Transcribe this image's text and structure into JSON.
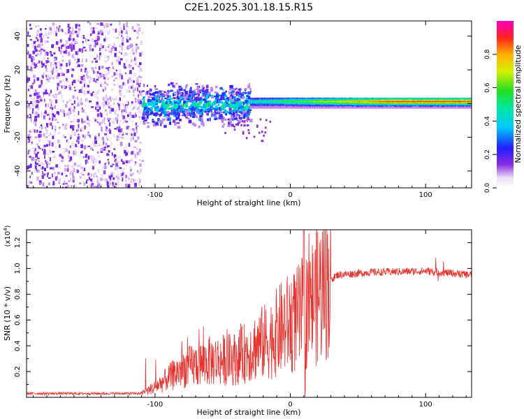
{
  "title": "C2E1.2025.301.18.15.R15",
  "chart_data": [
    {
      "type": "heatmap",
      "name": "spectrogram",
      "xlabel": "Height of straight line (km)",
      "ylabel": "Frequency (Hz)",
      "xlim": [
        -195,
        134
      ],
      "ylim": [
        -50,
        49
      ],
      "xticks": [
        -100,
        0,
        100
      ],
      "yticks": [
        -40,
        -20,
        0,
        20,
        40
      ],
      "colorbar": {
        "label": "Normalized spectral amplitude",
        "range": [
          0,
          1
        ],
        "ticks": [
          0.0,
          0.2,
          0.4,
          0.6,
          0.8
        ]
      },
      "regions": [
        {
          "description_range_km": [
            -195,
            -110
          ],
          "freq_spread_hz": [
            -50,
            49
          ],
          "amplitude": 0.15
        },
        {
          "description_range_km": [
            -110,
            -30
          ],
          "freq_center_hz": 0,
          "freq_spread_hz": [
            -10,
            10
          ],
          "amplitude": 0.45
        },
        {
          "description_range_km": [
            -30,
            134
          ],
          "freq_center_hz": 1,
          "freq_spread_hz": [
            -3,
            3
          ],
          "amplitude": 0.85
        }
      ]
    },
    {
      "type": "line",
      "name": "snr",
      "xlabel": "Height of straight line (km)",
      "ylabel": "SNR (10 * v/v)",
      "yscale_label": "(x10",
      "yscale_exp": "4",
      "xlim": [
        -195,
        134
      ],
      "ylim": [
        0,
        1.3
      ],
      "xticks": [
        -100,
        0,
        100
      ],
      "yticks": [
        0.2,
        0.4,
        0.6,
        0.8,
        1.0,
        1.2
      ],
      "ytick_labels": [
        "0.2",
        "0.4",
        "0.6",
        "0.8",
        "1.0",
        "1.2"
      ],
      "color": "#e8302c",
      "envelope": [
        {
          "x": -195,
          "y": 0.03
        },
        {
          "x": -110,
          "y": 0.03
        },
        {
          "x": -100,
          "y": 0.08
        },
        {
          "x": -80,
          "y": 0.22
        },
        {
          "x": -60,
          "y": 0.28
        },
        {
          "x": -40,
          "y": 0.3
        },
        {
          "x": -25,
          "y": 0.4
        },
        {
          "x": -15,
          "y": 0.45
        },
        {
          "x": -5,
          "y": 0.55
        },
        {
          "x": 5,
          "y": 0.6
        },
        {
          "x": 15,
          "y": 0.72
        },
        {
          "x": 25,
          "y": 0.88
        },
        {
          "x": 35,
          "y": 0.95
        },
        {
          "x": 60,
          "y": 0.97
        },
        {
          "x": 100,
          "y": 0.98
        },
        {
          "x": 134,
          "y": 0.95
        }
      ]
    }
  ]
}
